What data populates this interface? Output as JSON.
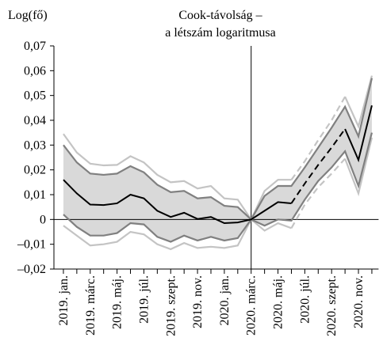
{
  "chart_data": {
    "type": "line",
    "title": [
      "Cook-távolság –",
      "a létszám logaritmusa"
    ],
    "y_label": "Log(fő)",
    "categories": [
      "2019. jan.",
      null,
      "2019. márc.",
      null,
      "2019. máj.",
      null,
      "2019. júl.",
      null,
      "2019. szept.",
      null,
      "2019. nov.",
      null,
      "2020. jan.",
      null,
      "2020. márc.",
      null,
      "2020. máj.",
      null,
      "2020. júl.",
      null,
      "2020. szept.",
      null,
      "2020. nov.",
      null
    ],
    "series": [
      {
        "color": "#000000",
        "dash": true,
        "values": [
          0.016,
          0.0105,
          0.006,
          0.0058,
          0.0065,
          0.01,
          0.0085,
          0.0035,
          0.001,
          0.0027,
          0.0002,
          0.001,
          -0.0015,
          -0.0012,
          0,
          0.0035,
          0.007,
          0.0065,
          0.0145,
          0.022,
          0.029,
          0.0365,
          0.024,
          0.046
        ]
      },
      {
        "color": "#808080",
        "dash": false,
        "values": [
          0.03,
          0.023,
          0.0185,
          0.018,
          0.0185,
          0.0215,
          0.019,
          0.014,
          0.011,
          0.0115,
          0.0085,
          0.009,
          0.0055,
          0.005,
          0,
          0.0095,
          0.0135,
          0.0135,
          0.021,
          0.029,
          0.037,
          0.0455,
          0.0335,
          0.057
        ]
      },
      {
        "color": "#808080",
        "dash": false,
        "values": [
          0.002,
          -0.003,
          -0.0065,
          -0.0065,
          -0.0055,
          -0.0015,
          -0.002,
          -0.007,
          -0.009,
          -0.0065,
          -0.0085,
          -0.007,
          -0.0085,
          -0.0075,
          0,
          -0.0025,
          0.0,
          -0.0005,
          0.008,
          0.0155,
          0.021,
          0.0275,
          0.0135,
          0.035
        ]
      },
      {
        "color": "#c4c4c4",
        "dash": true,
        "values": [
          0.0345,
          0.027,
          0.0225,
          0.0218,
          0.022,
          0.0255,
          0.023,
          0.018,
          0.015,
          0.0155,
          0.0125,
          0.0135,
          0.0085,
          0.008,
          0,
          0.0115,
          0.016,
          0.016,
          0.0235,
          0.032,
          0.04,
          0.0495,
          0.0375,
          0.058
        ]
      },
      {
        "color": "#c4c4c4",
        "dash": true,
        "values": [
          -0.0025,
          -0.0065,
          -0.0105,
          -0.01,
          -0.009,
          -0.005,
          -0.006,
          -0.01,
          -0.012,
          -0.0095,
          -0.0115,
          -0.011,
          -0.0115,
          -0.0105,
          0,
          -0.0045,
          -0.0015,
          -0.0035,
          0.006,
          0.013,
          0.0185,
          0.0245,
          0.0105,
          0.033
        ]
      }
    ],
    "fill": {
      "color": "#d9d9d9",
      "between": [
        1,
        2
      ]
    },
    "dashed_segment": [
      17,
      21
    ],
    "vline_at": 14,
    "ylim": [
      -0.02,
      0.07
    ],
    "yticks": [
      {
        "value": -0.02,
        "label": "–0,02"
      },
      {
        "value": -0.01,
        "label": "–0,01"
      },
      0,
      {
        "value": 0.01,
        "label": "0,01"
      },
      {
        "value": 0.02,
        "label": "0,02"
      },
      {
        "value": 0.03,
        "label": "0,03"
      },
      {
        "value": 0.04,
        "label": "0,04"
      },
      {
        "value": 0.05,
        "label": "0,05"
      },
      {
        "value": 0.06,
        "label": "0,06"
      },
      {
        "value": 0.07,
        "label": "0,07"
      }
    ]
  }
}
